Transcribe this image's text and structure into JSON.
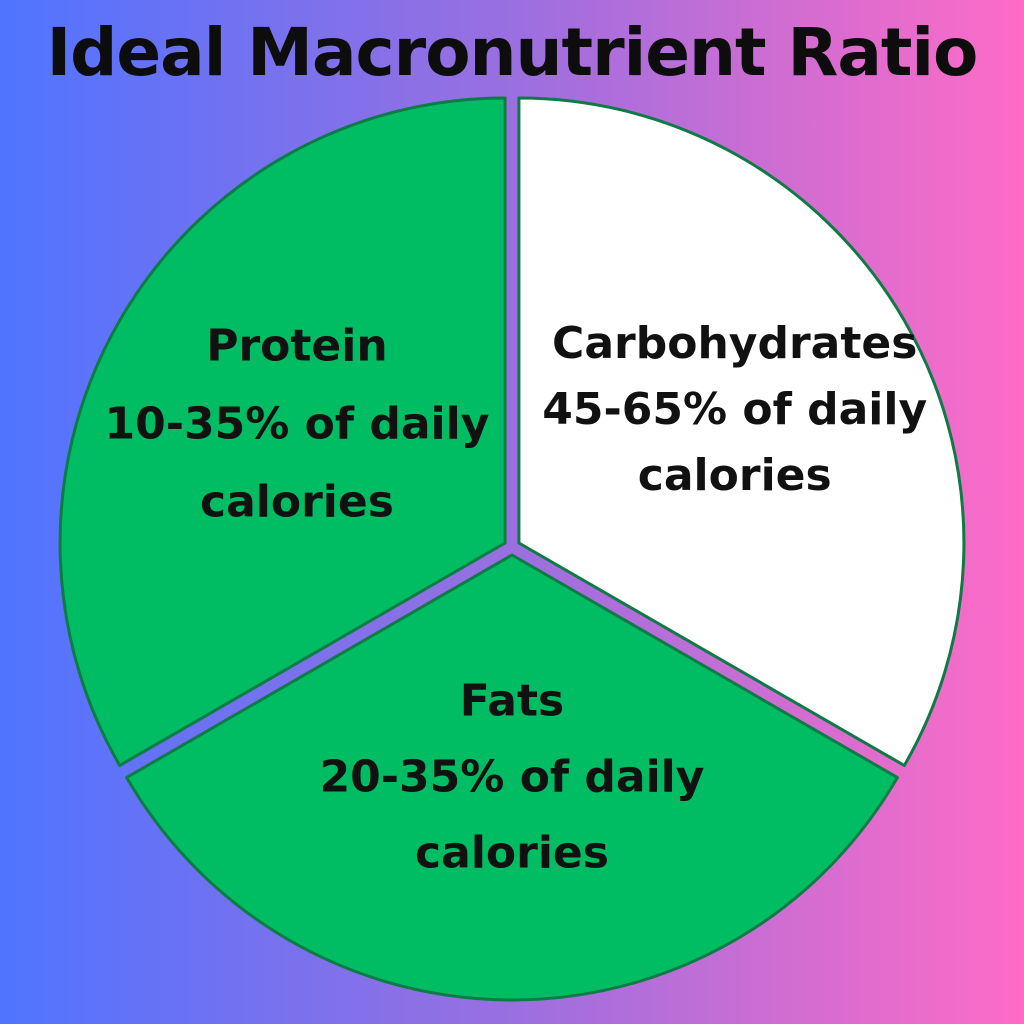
{
  "chart_data": {
    "type": "pie",
    "title": "Ideal Macronutrient Ratio",
    "slices": [
      {
        "name": "Carbohydrates",
        "lines": [
          "Carbohydrates",
          "45-65% of daily",
          "calories"
        ],
        "value": 1,
        "color": "#ffffff"
      },
      {
        "name": "Fats",
        "lines": [
          "Fats",
          "20-35% of daily",
          "calories"
        ],
        "value": 1,
        "color": "#00bd63"
      },
      {
        "name": "Protein",
        "lines": [
          "Protein",
          "10-35% of daily",
          "calories"
        ],
        "value": 1,
        "color": "#00bd63"
      }
    ],
    "outline_color": "#0e7a45",
    "legend": "none"
  }
}
